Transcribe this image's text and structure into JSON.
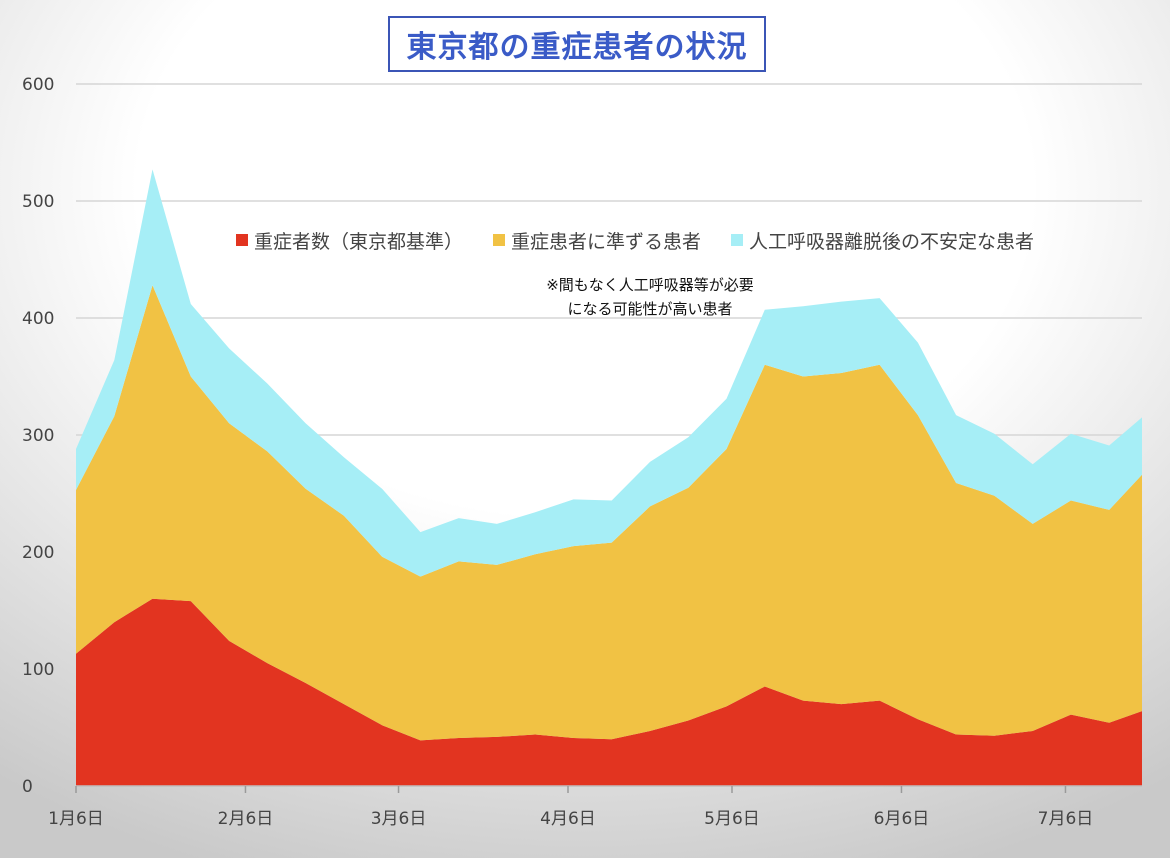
{
  "title": "東京都の重症患者の状況",
  "annotation": {
    "line1": "※間もなく人工呼吸器等が必要",
    "line2": "になる可能性が高い患者"
  },
  "colors": {
    "background_gradient": [
      "#ffffff",
      "#c9c9c9"
    ],
    "severe": "#e23420",
    "semi_severe": "#f1c244",
    "post_ventilator": "#a6eef6",
    "title": "#3a5bc7",
    "title_border": "#3b55b6",
    "grid": "#d6d6d6",
    "axis_text": "#444444"
  },
  "chart_data": {
    "type": "area",
    "stacked": true,
    "title": "東京都の重症患者の状況",
    "xlabel": "",
    "ylabel": "",
    "ylim": [
      0,
      600
    ],
    "yticks": [
      0,
      100,
      200,
      300,
      400,
      500,
      600
    ],
    "grid": true,
    "legend_position": "top-center",
    "x_tick_labels": [
      "1月6日",
      "2月6日",
      "3月6日",
      "4月6日",
      "5月6日",
      "6月6日",
      "7月6日"
    ],
    "x_tick_days": [
      0,
      31,
      59,
      90,
      120,
      151,
      181
    ],
    "x_range_days": [
      0,
      195
    ],
    "x_days": [
      0,
      7,
      14,
      21,
      28,
      35,
      42,
      49,
      56,
      63,
      70,
      77,
      84,
      91,
      98,
      105,
      112,
      119,
      126,
      133,
      140,
      147,
      154,
      161,
      168,
      175,
      182,
      189,
      195
    ],
    "series": [
      {
        "name": "重症者数（東京都基準）",
        "color": "#e23420",
        "values": [
          113,
          140,
          160,
          158,
          124,
          105,
          88,
          70,
          52,
          39,
          41,
          42,
          44,
          41,
          40,
          47,
          56,
          68,
          85,
          73,
          70,
          73,
          57,
          44,
          43,
          47,
          61,
          54,
          64
        ]
      },
      {
        "name": "重症患者に準ずる患者",
        "color": "#f1c244",
        "values": [
          140,
          176,
          268,
          192,
          186,
          181,
          166,
          161,
          144,
          140,
          151,
          147,
          154,
          164,
          168,
          192,
          199,
          220,
          275,
          277,
          283,
          287,
          260,
          215,
          205,
          177,
          183,
          182,
          202
        ]
      },
      {
        "name": "人工呼吸器離脱後の不安定な患者",
        "color": "#a6eef6",
        "values": [
          35,
          48,
          99,
          62,
          64,
          58,
          56,
          50,
          58,
          38,
          37,
          35,
          36,
          40,
          36,
          38,
          43,
          43,
          47,
          60,
          61,
          57,
          62,
          58,
          53,
          51,
          57,
          55,
          49
        ]
      }
    ]
  }
}
